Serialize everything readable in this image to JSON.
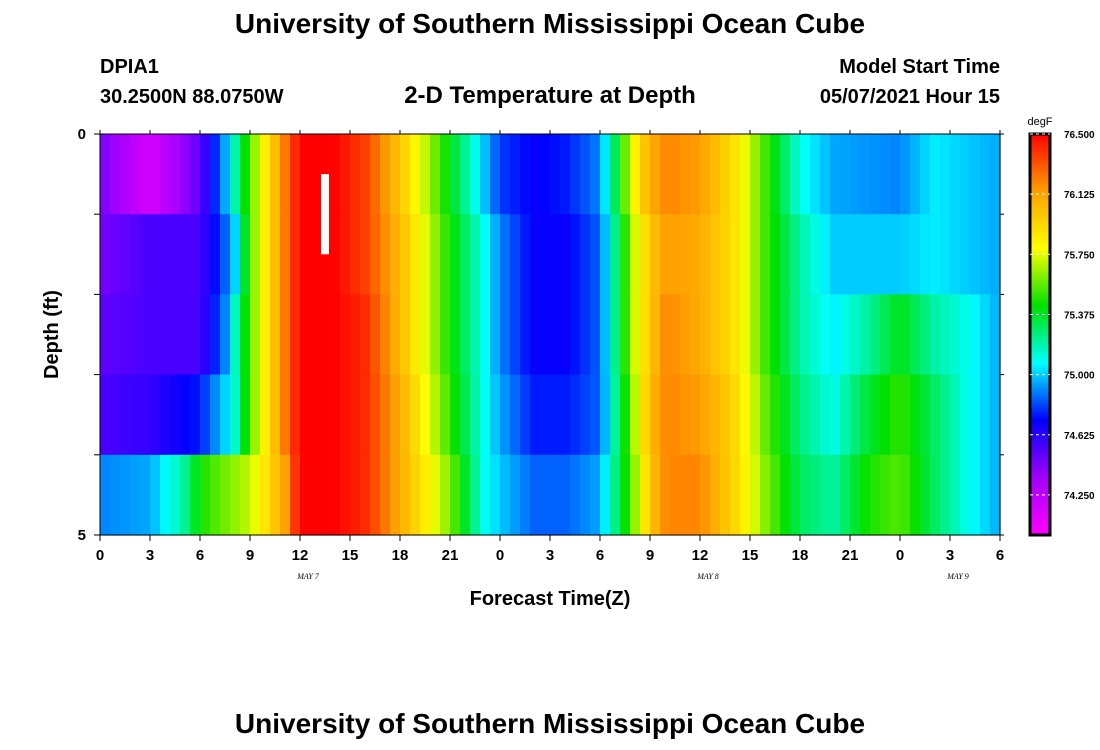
{
  "header": {
    "title": "University of Southern Mississippi Ocean Cube",
    "station_id": "DPIA1",
    "station_coords": "30.2500N  88.0750W",
    "plot_title": "2-D Temperature at Depth",
    "start_label": "Model Start Time",
    "start_value": "05/07/2021 Hour 15"
  },
  "footer": {
    "title": "University of Southern Mississippi Ocean Cube"
  },
  "chart_data": {
    "type": "heatmap",
    "xlabel": "Forecast Time(Z)",
    "ylabel": "Depth (ft)",
    "x_tick_labels": [
      "0",
      "3",
      "6",
      "9",
      "12",
      "15",
      "18",
      "21",
      "0",
      "3",
      "6",
      "9",
      "12",
      "15",
      "18",
      "21",
      "0",
      "3",
      "6"
    ],
    "date_labels": [
      {
        "label": "MAY 7",
        "hour": 12
      },
      {
        "label": "MAY 8",
        "hour": 36
      },
      {
        "label": "MAY 9",
        "hour": 51
      }
    ],
    "xlim": [
      0,
      54
    ],
    "y_tick_labels": [
      "0",
      "5"
    ],
    "ylim": [
      0,
      5
    ],
    "depth_levels": 5,
    "colorbar": {
      "unit": "degF",
      "min": 74.0,
      "max": 76.5,
      "tick_values": [
        76.5,
        76.125,
        75.75,
        75.375,
        75.0,
        74.625,
        74.25
      ],
      "tick_labels": [
        "76.500",
        "76.125",
        "75.750",
        "75.375",
        "75.000",
        "74.625",
        "74.250"
      ],
      "colors": [
        "#ff00ff",
        "#a000ff",
        "#0000ff",
        "#00ffff",
        "#00e000",
        "#ffff00",
        "#ffa000",
        "#ff0000"
      ]
    },
    "marker": {
      "hour": 13.5,
      "depth_from": 0.5,
      "depth_to": 1.5,
      "color": "#ffffff"
    },
    "series": [
      {
        "hour_values": [
          0,
          3,
          6,
          7.5,
          9,
          11,
          12,
          14,
          16,
          18,
          21,
          23,
          24,
          26,
          28,
          30,
          32,
          33,
          34,
          36,
          38,
          40,
          42,
          44,
          48,
          50,
          52,
          54
        ],
        "values": [
          74.45,
          74.15,
          74.5,
          74.95,
          75.55,
          76.2,
          76.5,
          76.5,
          76.35,
          76.0,
          75.4,
          75.0,
          74.8,
          74.7,
          74.75,
          74.9,
          75.8,
          76.1,
          76.2,
          76.15,
          75.9,
          75.5,
          75.1,
          74.95,
          74.9,
          75.05,
          75.0,
          74.95
        ]
      },
      {
        "hour_values": [
          0,
          3,
          6,
          8,
          9,
          11,
          12,
          14,
          16,
          18,
          21,
          23,
          24,
          26,
          28,
          30,
          32,
          33,
          34,
          36,
          38,
          40,
          42,
          44,
          48,
          50,
          52,
          54
        ],
        "values": [
          74.45,
          74.55,
          74.55,
          74.95,
          75.55,
          76.2,
          76.5,
          76.5,
          76.35,
          76.05,
          75.45,
          75.1,
          74.9,
          74.7,
          74.7,
          74.85,
          75.7,
          76.0,
          76.15,
          76.1,
          75.9,
          75.5,
          75.2,
          75.0,
          75.0,
          75.05,
          75.0,
          74.95
        ]
      },
      {
        "hour_values": [
          0,
          3,
          6,
          7.5,
          9,
          11,
          12,
          14,
          16,
          18,
          21,
          23,
          24,
          26,
          28,
          30,
          32,
          33,
          34,
          36,
          38,
          40,
          42,
          44,
          46,
          48,
          50,
          52,
          54
        ],
        "values": [
          74.5,
          74.55,
          74.55,
          74.9,
          75.55,
          76.2,
          76.5,
          76.5,
          76.4,
          76.05,
          75.45,
          75.1,
          74.9,
          74.7,
          74.7,
          74.85,
          75.7,
          76.0,
          76.2,
          76.1,
          75.9,
          75.5,
          75.2,
          75.05,
          75.2,
          75.4,
          75.2,
          75.1,
          74.95
        ]
      },
      {
        "hour_values": [
          0,
          3,
          6,
          8,
          9,
          11,
          12,
          14,
          16,
          18,
          21,
          23,
          24,
          26,
          28,
          30,
          32,
          33,
          34,
          36,
          38,
          40,
          42,
          44,
          46,
          48,
          50,
          52,
          54
        ],
        "values": [
          74.55,
          74.6,
          74.75,
          75.1,
          75.55,
          76.2,
          76.5,
          76.5,
          76.4,
          76.1,
          75.5,
          75.1,
          74.95,
          74.75,
          74.75,
          74.85,
          75.65,
          76.05,
          76.2,
          76.15,
          75.95,
          75.55,
          75.25,
          75.1,
          75.35,
          75.5,
          75.3,
          75.1,
          74.95
        ]
      },
      {
        "hour_values": [
          0,
          3,
          5,
          6,
          7,
          9,
          11,
          12,
          14,
          16,
          18,
          21,
          23,
          24,
          26,
          28,
          30,
          32,
          33,
          34,
          36,
          38,
          40,
          42,
          44,
          46,
          48,
          50,
          52,
          54
        ],
        "values": [
          74.9,
          74.95,
          75.2,
          75.45,
          75.55,
          75.7,
          76.1,
          76.5,
          76.5,
          76.4,
          76.1,
          75.6,
          75.1,
          75.0,
          74.85,
          74.85,
          74.95,
          75.6,
          76.0,
          76.2,
          76.2,
          75.95,
          75.6,
          75.3,
          75.2,
          75.45,
          75.55,
          75.3,
          75.1,
          74.95
        ]
      }
    ]
  }
}
